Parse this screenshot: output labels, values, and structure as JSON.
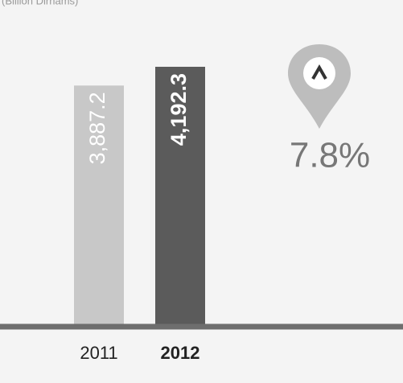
{
  "chart_data": {
    "type": "bar",
    "subtitle": "(Billion Dirhams)",
    "categories": [
      "2011",
      "2012"
    ],
    "values": [
      3887.2,
      4192.3
    ],
    "value_labels": [
      "3,887.2",
      "4,192.3"
    ],
    "colors": [
      "#c8c8c8",
      "#5b5b5b"
    ],
    "annotation": "7.8%"
  }
}
